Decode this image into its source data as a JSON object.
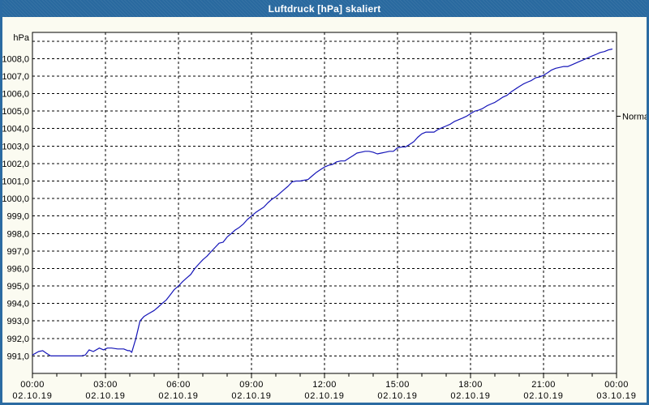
{
  "window": {
    "title": "Luftdruck [hPa] skaliert"
  },
  "colors": {
    "titlebar": "#29699f",
    "window_border": "#2b6ba2",
    "window_bg": "#fbfbf1",
    "plot_bg": "#ffffff",
    "grid": "#000000",
    "curve": "#1515b8",
    "text": "#000000"
  },
  "chart_data": {
    "type": "line",
    "title": "Luftdruck [hPa] skaliert",
    "grid": "dashed",
    "x_axis": {
      "range_hours": [
        0,
        24
      ],
      "major_step_hours": 3,
      "minor_step_hours": 1,
      "ticks": [
        {
          "time": "00:00",
          "date": "02.10.19"
        },
        {
          "time": "03:00",
          "date": "02.10.19"
        },
        {
          "time": "06:00",
          "date": "02.10.19"
        },
        {
          "time": "09:00",
          "date": "02.10.19"
        },
        {
          "time": "12:00",
          "date": "02.10.19"
        },
        {
          "time": "15:00",
          "date": "02.10.19"
        },
        {
          "time": "18:00",
          "date": "02.10.19"
        },
        {
          "time": "21:00",
          "date": "02.10.19"
        },
        {
          "time": "00:00",
          "date": "03.10.19"
        }
      ]
    },
    "y_axis": {
      "unit": "hPa",
      "min": 990.0,
      "max": 1009.5,
      "top_gridline": 1009,
      "tick_values": [
        991,
        992,
        993,
        994,
        995,
        996,
        997,
        998,
        999,
        1000,
        1001,
        1002,
        1003,
        1004,
        1005,
        1006,
        1007,
        1008
      ],
      "tick_labels": [
        "991,0",
        "992,0",
        "993,0",
        "994,0",
        "995,0",
        "996,0",
        "997,0",
        "998,0",
        "999,0",
        "1000,0",
        "1001,0",
        "1002,0",
        "1003,0",
        "1004,0",
        "1005,0",
        "1006,0",
        "1007,0",
        "1008,0"
      ]
    },
    "annotations": [
      {
        "label": "Normal",
        "value": 1004.7,
        "position": "right"
      }
    ],
    "series": [
      {
        "name": "Luftdruck",
        "color": "#1515b8",
        "points": [
          [
            0.0,
            991.05
          ],
          [
            0.25,
            991.25
          ],
          [
            0.42,
            991.3
          ],
          [
            0.58,
            991.15
          ],
          [
            0.75,
            991.0
          ],
          [
            1.0,
            991.0
          ],
          [
            1.25,
            991.0
          ],
          [
            1.5,
            991.0
          ],
          [
            1.75,
            991.0
          ],
          [
            2.0,
            991.0
          ],
          [
            2.17,
            991.05
          ],
          [
            2.33,
            991.35
          ],
          [
            2.5,
            991.25
          ],
          [
            2.75,
            991.45
          ],
          [
            2.92,
            991.35
          ],
          [
            3.08,
            991.45
          ],
          [
            3.25,
            991.45
          ],
          [
            3.5,
            991.4
          ],
          [
            3.75,
            991.4
          ],
          [
            3.92,
            991.3
          ],
          [
            4.0,
            991.3
          ],
          [
            4.08,
            991.2
          ],
          [
            4.25,
            992.0
          ],
          [
            4.42,
            993.0
          ],
          [
            4.58,
            993.25
          ],
          [
            4.75,
            993.4
          ],
          [
            5.0,
            993.6
          ],
          [
            5.17,
            993.8
          ],
          [
            5.33,
            994.0
          ],
          [
            5.5,
            994.2
          ],
          [
            5.67,
            994.5
          ],
          [
            5.83,
            994.8
          ],
          [
            6.0,
            995.0
          ],
          [
            6.17,
            995.25
          ],
          [
            6.33,
            995.45
          ],
          [
            6.5,
            995.65
          ],
          [
            6.67,
            996.0
          ],
          [
            6.83,
            996.25
          ],
          [
            7.0,
            996.5
          ],
          [
            7.17,
            996.7
          ],
          [
            7.33,
            996.95
          ],
          [
            7.5,
            997.2
          ],
          [
            7.67,
            997.45
          ],
          [
            7.83,
            997.5
          ],
          [
            8.0,
            997.8
          ],
          [
            8.17,
            998.0
          ],
          [
            8.33,
            998.2
          ],
          [
            8.5,
            998.35
          ],
          [
            8.67,
            998.55
          ],
          [
            8.83,
            998.8
          ],
          [
            9.0,
            999.0
          ],
          [
            9.17,
            999.2
          ],
          [
            9.33,
            999.35
          ],
          [
            9.5,
            999.5
          ],
          [
            9.67,
            999.75
          ],
          [
            9.83,
            999.95
          ],
          [
            10.0,
            1000.1
          ],
          [
            10.17,
            1000.3
          ],
          [
            10.33,
            1000.5
          ],
          [
            10.5,
            1000.7
          ],
          [
            10.67,
            1000.95
          ],
          [
            10.83,
            1001.0
          ],
          [
            11.0,
            1001.0
          ],
          [
            11.17,
            1001.05
          ],
          [
            11.33,
            1001.1
          ],
          [
            11.5,
            1001.3
          ],
          [
            11.67,
            1001.5
          ],
          [
            11.83,
            1001.65
          ],
          [
            12.0,
            1001.8
          ],
          [
            12.17,
            1001.9
          ],
          [
            12.33,
            1001.95
          ],
          [
            12.5,
            1002.1
          ],
          [
            12.67,
            1002.15
          ],
          [
            12.83,
            1002.15
          ],
          [
            13.0,
            1002.3
          ],
          [
            13.17,
            1002.45
          ],
          [
            13.33,
            1002.6
          ],
          [
            13.5,
            1002.65
          ],
          [
            13.67,
            1002.7
          ],
          [
            13.83,
            1002.7
          ],
          [
            14.0,
            1002.65
          ],
          [
            14.17,
            1002.55
          ],
          [
            14.33,
            1002.6
          ],
          [
            14.5,
            1002.65
          ],
          [
            14.67,
            1002.7
          ],
          [
            14.83,
            1002.7
          ],
          [
            15.0,
            1002.9
          ],
          [
            15.17,
            1002.95
          ],
          [
            15.33,
            1002.95
          ],
          [
            15.5,
            1003.1
          ],
          [
            15.67,
            1003.25
          ],
          [
            15.83,
            1003.5
          ],
          [
            16.0,
            1003.7
          ],
          [
            16.17,
            1003.8
          ],
          [
            16.33,
            1003.8
          ],
          [
            16.5,
            1003.8
          ],
          [
            16.67,
            1003.95
          ],
          [
            16.83,
            1004.05
          ],
          [
            17.0,
            1004.15
          ],
          [
            17.17,
            1004.25
          ],
          [
            17.33,
            1004.4
          ],
          [
            17.5,
            1004.5
          ],
          [
            17.67,
            1004.6
          ],
          [
            17.83,
            1004.7
          ],
          [
            18.0,
            1004.85
          ],
          [
            18.17,
            1005.0
          ],
          [
            18.33,
            1005.05
          ],
          [
            18.5,
            1005.15
          ],
          [
            18.67,
            1005.3
          ],
          [
            18.83,
            1005.4
          ],
          [
            19.0,
            1005.5
          ],
          [
            19.17,
            1005.65
          ],
          [
            19.33,
            1005.8
          ],
          [
            19.5,
            1005.9
          ],
          [
            19.67,
            1006.1
          ],
          [
            19.83,
            1006.25
          ],
          [
            20.0,
            1006.4
          ],
          [
            20.17,
            1006.55
          ],
          [
            20.33,
            1006.65
          ],
          [
            20.5,
            1006.75
          ],
          [
            20.67,
            1006.9
          ],
          [
            20.83,
            1006.95
          ],
          [
            21.0,
            1007.05
          ],
          [
            21.17,
            1007.2
          ],
          [
            21.33,
            1007.35
          ],
          [
            21.5,
            1007.45
          ],
          [
            21.67,
            1007.5
          ],
          [
            21.83,
            1007.55
          ],
          [
            22.0,
            1007.55
          ],
          [
            22.17,
            1007.65
          ],
          [
            22.33,
            1007.75
          ],
          [
            22.5,
            1007.85
          ],
          [
            22.67,
            1007.95
          ],
          [
            22.83,
            1008.05
          ],
          [
            23.0,
            1008.15
          ],
          [
            23.17,
            1008.25
          ],
          [
            23.33,
            1008.35
          ],
          [
            23.5,
            1008.4
          ],
          [
            23.67,
            1008.5
          ],
          [
            23.83,
            1008.55
          ]
        ]
      }
    ]
  }
}
